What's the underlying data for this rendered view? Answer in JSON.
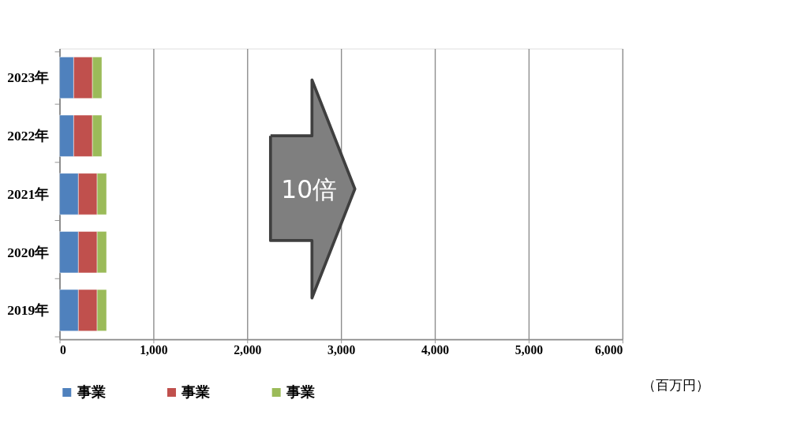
{
  "chart_data": {
    "type": "bar",
    "orientation": "horizontal",
    "stacked": true,
    "categories": [
      "2023年",
      "2022年",
      "2021年",
      "2020年",
      "2019年"
    ],
    "series": [
      {
        "name": "事業",
        "color": "#4f81bd",
        "values": [
          150,
          150,
          200,
          200,
          200
        ]
      },
      {
        "name": "事業",
        "color": "#c0504d",
        "values": [
          200,
          200,
          200,
          200,
          200
        ]
      },
      {
        "name": "事業",
        "color": "#9bbb59",
        "values": [
          100,
          100,
          100,
          100,
          100
        ]
      }
    ],
    "xlim": [
      0,
      6000
    ],
    "xticks": [
      0,
      {
        "value": 1000,
        "label": "1,000"
      },
      {
        "value": 2000,
        "label": "2,000"
      },
      {
        "value": 3000,
        "label": "3,000"
      },
      {
        "value": 4000,
        "label": "4,000"
      },
      {
        "value": 5000,
        "label": "5,000"
      },
      {
        "value": 6000,
        "label": "6,000"
      }
    ],
    "grid": "x",
    "legend": "bottom",
    "annotations": [
      "（百万円）",
      "10倍"
    ]
  }
}
